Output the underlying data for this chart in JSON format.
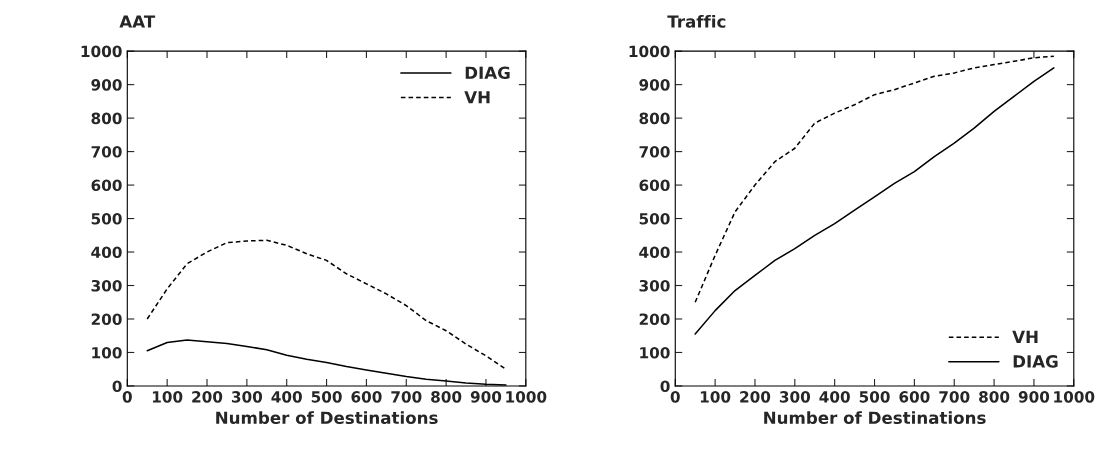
{
  "chart_data": [
    {
      "type": "line",
      "ylabel": "AAT",
      "xlabel": "Number of Destinations",
      "xlim": [
        0,
        1000
      ],
      "ylim": [
        0,
        1000
      ],
      "xticks": [
        0,
        100,
        200,
        300,
        400,
        500,
        600,
        700,
        800,
        900,
        1000
      ],
      "yticks": [
        0,
        100,
        200,
        300,
        400,
        500,
        600,
        700,
        800,
        900,
        1000
      ],
      "legend": "top right",
      "grid": false,
      "x": [
        50,
        100,
        150,
        200,
        250,
        300,
        350,
        400,
        450,
        500,
        550,
        600,
        650,
        700,
        750,
        800,
        850,
        900,
        950
      ],
      "series": [
        {
          "name": "DIAG",
          "color": "#000000",
          "line_style": "solid",
          "values": [
            105,
            130,
            137,
            132,
            127,
            118,
            108,
            92,
            80,
            70,
            58,
            48,
            38,
            28,
            20,
            15,
            9,
            5,
            3
          ]
        },
        {
          "name": "VH",
          "color": "#000000",
          "line_style": "dashed",
          "values": [
            200,
            290,
            365,
            400,
            428,
            433,
            435,
            420,
            395,
            375,
            335,
            305,
            275,
            240,
            195,
            165,
            125,
            90,
            50
          ]
        }
      ]
    },
    {
      "type": "line",
      "ylabel": "Traffic",
      "xlabel": "Number of Destinations",
      "xlim": [
        0,
        1000
      ],
      "ylim": [
        0,
        1000
      ],
      "xticks": [
        0,
        100,
        200,
        300,
        400,
        500,
        600,
        700,
        800,
        900,
        1000
      ],
      "yticks": [
        0,
        100,
        200,
        300,
        400,
        500,
        600,
        700,
        800,
        900,
        1000
      ],
      "legend": "bottom right",
      "grid": false,
      "x": [
        50,
        100,
        150,
        200,
        250,
        300,
        350,
        400,
        450,
        500,
        550,
        600,
        650,
        700,
        750,
        800,
        850,
        900,
        950
      ],
      "series": [
        {
          "name": "VH",
          "color": "#000000",
          "line_style": "dashed",
          "values": [
            250,
            390,
            520,
            600,
            670,
            710,
            785,
            815,
            840,
            870,
            885,
            905,
            925,
            935,
            950,
            960,
            970,
            980,
            985
          ]
        },
        {
          "name": "DIAG",
          "color": "#000000",
          "line_style": "solid",
          "values": [
            155,
            225,
            285,
            330,
            375,
            410,
            450,
            485,
            525,
            565,
            605,
            640,
            685,
            725,
            770,
            820,
            865,
            910,
            950
          ]
        }
      ]
    }
  ]
}
